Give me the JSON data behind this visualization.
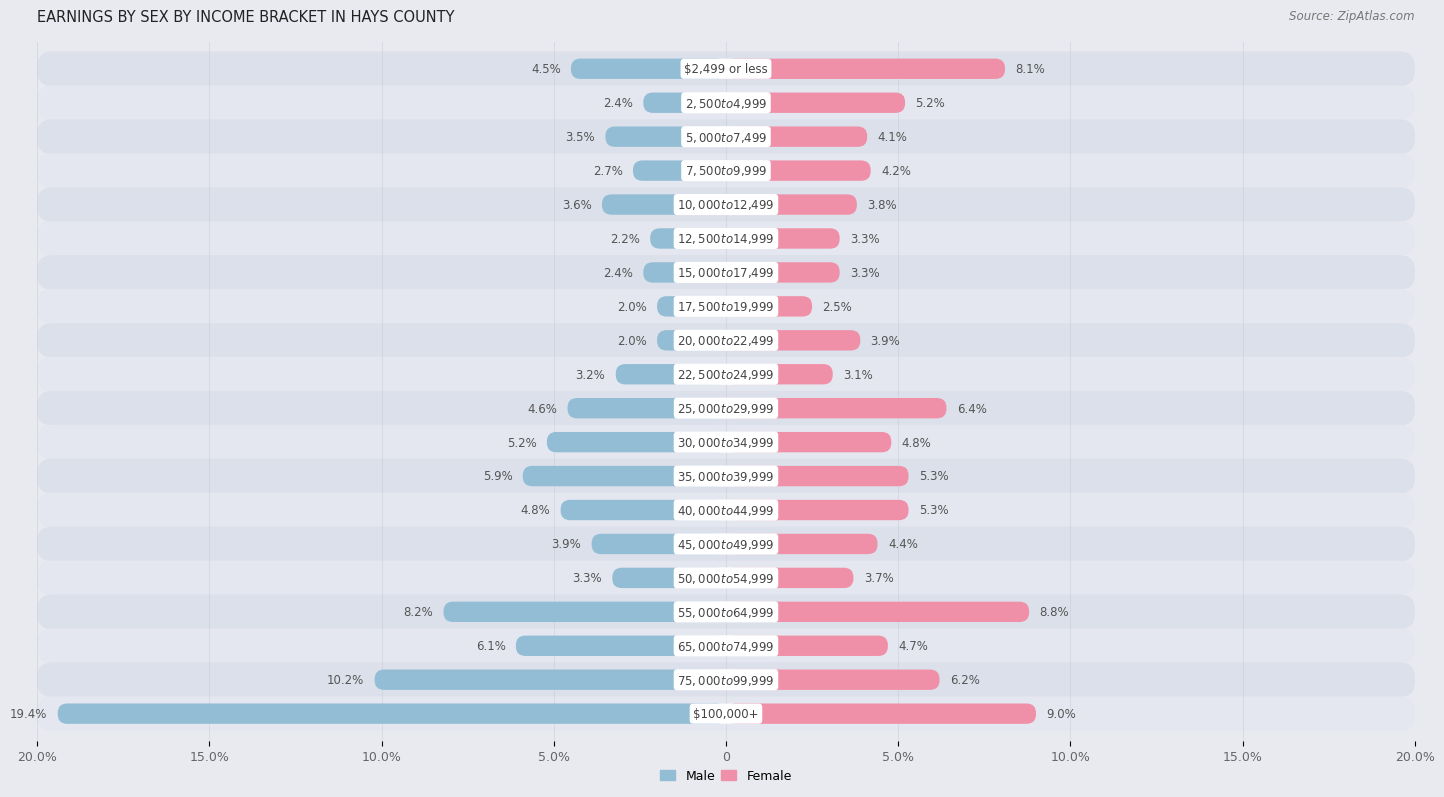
{
  "title": "EARNINGS BY SEX BY INCOME BRACKET IN HAYS COUNTY",
  "source": "Source: ZipAtlas.com",
  "categories": [
    "$2,499 or less",
    "$2,500 to $4,999",
    "$5,000 to $7,499",
    "$7,500 to $9,999",
    "$10,000 to $12,499",
    "$12,500 to $14,999",
    "$15,000 to $17,499",
    "$17,500 to $19,999",
    "$20,000 to $22,499",
    "$22,500 to $24,999",
    "$25,000 to $29,999",
    "$30,000 to $34,999",
    "$35,000 to $39,999",
    "$40,000 to $44,999",
    "$45,000 to $49,999",
    "$50,000 to $54,999",
    "$55,000 to $64,999",
    "$65,000 to $74,999",
    "$75,000 to $99,999",
    "$100,000+"
  ],
  "male_values": [
    4.5,
    2.4,
    3.5,
    2.7,
    3.6,
    2.2,
    2.4,
    2.0,
    2.0,
    3.2,
    4.6,
    5.2,
    5.9,
    4.8,
    3.9,
    3.3,
    8.2,
    6.1,
    10.2,
    19.4
  ],
  "female_values": [
    8.1,
    5.2,
    4.1,
    4.2,
    3.8,
    3.3,
    3.3,
    2.5,
    3.9,
    3.1,
    6.4,
    4.8,
    5.3,
    5.3,
    4.4,
    3.7,
    8.8,
    4.7,
    6.2,
    9.0
  ],
  "male_color": "#92bdd4",
  "female_color": "#f090a8",
  "male_label": "Male",
  "female_label": "Female",
  "xlim": 20.0,
  "bg_color": "#e8eaf0",
  "row_color_odd": "#dde0ea",
  "row_color_even": "#e8eaf0",
  "bar_row_color": "#e0e3ec",
  "title_fontsize": 10.5,
  "source_fontsize": 8.5,
  "tick_fontsize": 9,
  "label_fontsize": 8.5,
  "category_fontsize": 8.5,
  "tick_positions": [
    -20,
    -15,
    -10,
    -5,
    0,
    5,
    10,
    15,
    20
  ],
  "tick_labels": [
    "20.0%",
    "15.0%",
    "10.0%",
    "5.0%",
    "0",
    "5.0%",
    "10.0%",
    "15.0%",
    "20.0%"
  ]
}
